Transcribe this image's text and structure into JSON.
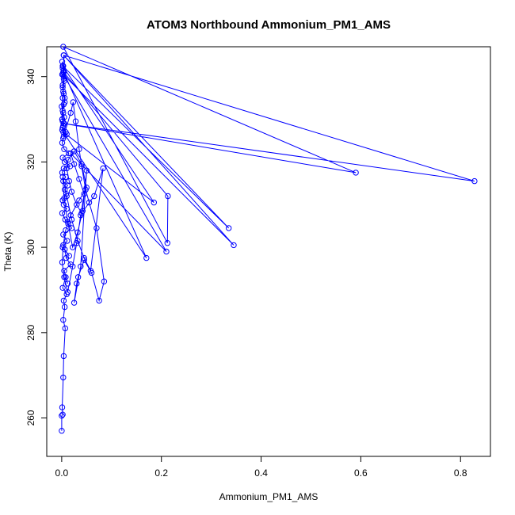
{
  "chart_data": {
    "type": "line",
    "title": "ATOM3 Northbound Ammonium_PM1_AMS",
    "xlabel": "Ammonium_PM1_AMS",
    "ylabel": "Theta (K)",
    "xlim": [
      -0.03,
      0.86
    ],
    "ylim": [
      251,
      347
    ],
    "xticks": [
      0.0,
      0.2,
      0.4,
      0.6,
      0.8
    ],
    "xtick_labels": [
      "0.0",
      "0.2",
      "0.4",
      "0.6",
      "0.8"
    ],
    "yticks": [
      260,
      280,
      300,
      320,
      340
    ],
    "ytick_labels": [
      "260",
      "280",
      "300",
      "320",
      "340"
    ],
    "grid": false,
    "legend": "none",
    "series": [
      {
        "color": "#0000ff",
        "marker": "open-circle",
        "x": [
          0.0,
          0.0,
          0.002,
          0.001,
          0.003,
          0.004,
          0.007,
          0.003,
          0.006,
          0.004,
          0.01,
          0.002,
          0.008,
          0.012,
          0.005,
          0.018,
          0.009,
          0.006,
          0.015,
          0.002,
          0.011,
          0.003,
          0.02,
          0.013,
          0.007,
          0.001,
          0.01,
          0.004,
          0.002,
          0.009,
          0.006,
          0.012,
          0.003,
          0.008,
          0.001,
          0.004,
          0.017,
          0.006,
          0.002,
          0.014,
          0.005,
          0.001,
          0.003,
          0.01,
          0.008,
          0.002,
          0.005,
          0.001,
          0.003,
          0.0,
          0.006,
          0.004,
          0.002,
          0.005,
          0.001,
          0.004,
          0.003,
          0.001,
          0.002,
          0.003,
          0.004,
          0.002,
          0.003,
          0.006,
          0.004,
          0.002,
          0.005,
          0.002,
          0.003,
          0.001,
          0.004,
          0.018,
          0.023,
          0.028,
          0.035,
          0.04,
          0.048,
          0.055,
          0.07,
          0.085,
          0.075,
          0.06,
          0.045,
          0.033,
          0.03,
          0.025,
          0.038,
          0.05,
          0.042,
          0.032,
          0.022,
          0.012,
          0.005,
          0.002,
          0.01,
          0.02,
          0.032,
          0.045,
          0.058,
          0.083,
          0.065,
          0.04,
          0.03,
          0.02,
          0.015,
          0.01,
          0.013,
          0.025,
          0.04,
          0.05,
          0.035,
          0.018,
          0.008,
          0.003,
          0.001,
          0.005,
          0.012,
          0.022,
          0.03,
          0.038,
          0.045,
          0.035,
          0.025,
          0.018,
          0.21,
          0.003,
          0.345,
          0.004,
          0.335,
          0.002,
          0.185,
          0.003,
          0.17,
          0.004,
          0.213,
          0.212,
          0.003,
          0.59,
          0.004,
          0.828,
          0.004,
          0.005,
          0.002,
          0.001
        ],
        "y": [
          257.0,
          260.5,
          260.8,
          262.5,
          269.5,
          274.5,
          281.0,
          283.0,
          286.0,
          287.5,
          289.0,
          290.5,
          293.0,
          291.5,
          294.5,
          296.0,
          297.5,
          299.5,
          298.0,
          300.0,
          301.5,
          303.0,
          304.5,
          305.5,
          306.5,
          308.0,
          309.0,
          310.0,
          311.0,
          312.5,
          313.5,
          314.5,
          315.5,
          316.5,
          317.5,
          318.5,
          319.0,
          320.0,
          321.0,
          322.0,
          323.0,
          324.5,
          325.5,
          326.5,
          327.0,
          328.0,
          329.0,
          330.0,
          331.5,
          333.0,
          334.0,
          336.0,
          337.5,
          339.0,
          340.5,
          341.5,
          342.5,
          343.5,
          342.0,
          341.0,
          339.5,
          338.0,
          336.5,
          335.0,
          333.5,
          332.0,
          330.5,
          329.5,
          328.5,
          327.5,
          326.0,
          331.5,
          334.0,
          329.5,
          323.0,
          319.0,
          313.5,
          310.5,
          304.5,
          292.0,
          287.5,
          294.0,
          297.0,
          293.0,
          291.5,
          287.0,
          295.5,
          318.0,
          308.5,
          303.5,
          300.0,
          306.0,
          311.5,
          316.5,
          312.0,
          306.5,
          301.5,
          297.5,
          294.5,
          318.5,
          312.0,
          308.0,
          310.0,
          313.0,
          315.5,
          318.5,
          320.5,
          322.5,
          319.5,
          314.0,
          311.0,
          307.5,
          304.0,
          300.5,
          296.5,
          293.0,
          289.5,
          295.5,
          301.0,
          307.5,
          312.5,
          316.0,
          319.5,
          322.0,
          299.0,
          340.5,
          300.5,
          345.0,
          304.5,
          342.5,
          310.5,
          327.0,
          297.5,
          341.0,
          312.0,
          301.0,
          347.0,
          317.5,
          329.0,
          315.5,
          345.0,
          340.0,
          335.0,
          330.0
        ]
      }
    ]
  }
}
